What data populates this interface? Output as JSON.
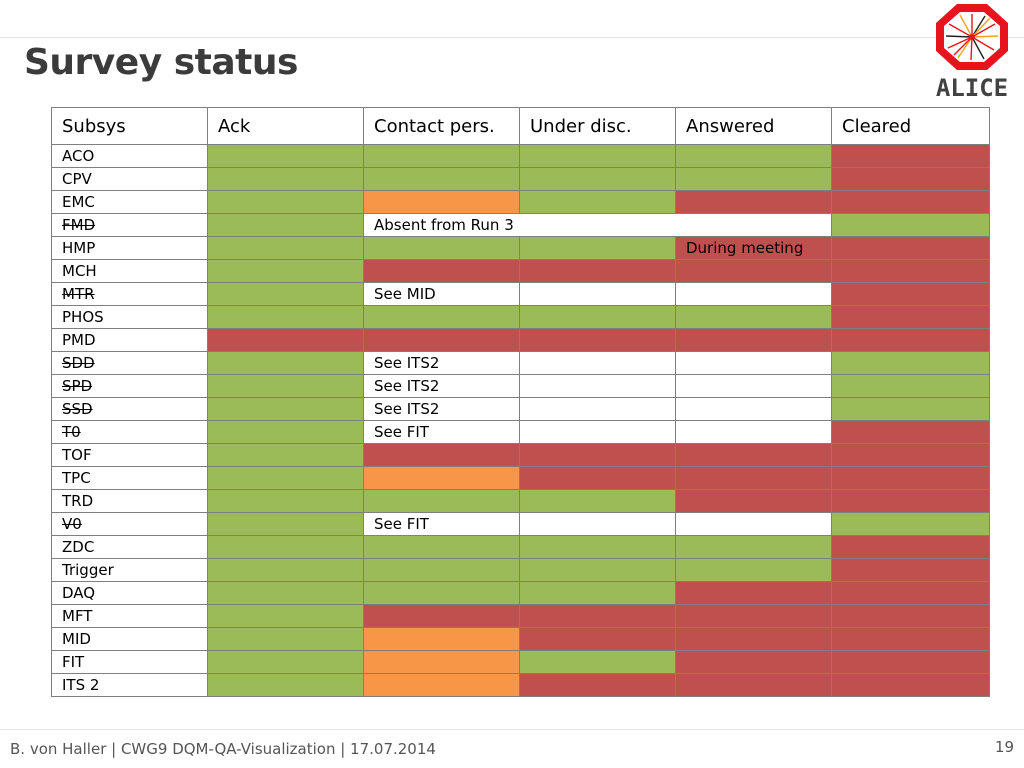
{
  "slide": {
    "title": "Survey status",
    "logo_text": "ALICE",
    "footer": "B. von Haller | CWG9 DQM-QA-Visualization | 17.07.2014",
    "page_number": "19"
  },
  "colors": {
    "green": "#9bbb59",
    "red": "#c0504d",
    "orange": "#f79646",
    "white": "#ffffff"
  },
  "table": {
    "headers": [
      "Subsys",
      "Ack",
      "Contact pers.",
      "Under disc.",
      "Answered",
      "Cleared"
    ],
    "rows": [
      {
        "name": "ACO",
        "struck": false,
        "cells": [
          {
            "c": "green"
          },
          {
            "c": "green"
          },
          {
            "c": "green"
          },
          {
            "c": "green"
          },
          {
            "c": "red"
          }
        ]
      },
      {
        "name": "CPV",
        "struck": false,
        "cells": [
          {
            "c": "green"
          },
          {
            "c": "green"
          },
          {
            "c": "green"
          },
          {
            "c": "green"
          },
          {
            "c": "red"
          }
        ]
      },
      {
        "name": "EMC",
        "struck": false,
        "cells": [
          {
            "c": "green"
          },
          {
            "c": "orange"
          },
          {
            "c": "green"
          },
          {
            "c": "red"
          },
          {
            "c": "red"
          }
        ]
      },
      {
        "name": "FMD",
        "struck": true,
        "cells": [
          {
            "c": "green"
          },
          {
            "c": "white",
            "t": "Absent from Run 3",
            "span": 3
          },
          {
            "c": "green"
          }
        ]
      },
      {
        "name": "HMP",
        "struck": false,
        "cells": [
          {
            "c": "green"
          },
          {
            "c": "green"
          },
          {
            "c": "green"
          },
          {
            "c": "red",
            "t": "During meeting"
          },
          {
            "c": "red"
          }
        ]
      },
      {
        "name": "MCH",
        "struck": false,
        "cells": [
          {
            "c": "green"
          },
          {
            "c": "red"
          },
          {
            "c": "red"
          },
          {
            "c": "red"
          },
          {
            "c": "red"
          }
        ]
      },
      {
        "name": "MTR",
        "struck": true,
        "cells": [
          {
            "c": "green"
          },
          {
            "c": "white",
            "t": "See MID"
          },
          {
            "c": "white"
          },
          {
            "c": "white"
          },
          {
            "c": "red"
          }
        ]
      },
      {
        "name": "PHOS",
        "struck": false,
        "cells": [
          {
            "c": "green"
          },
          {
            "c": "green"
          },
          {
            "c": "green"
          },
          {
            "c": "green"
          },
          {
            "c": "red"
          }
        ]
      },
      {
        "name": "PMD",
        "struck": false,
        "cells": [
          {
            "c": "red"
          },
          {
            "c": "red"
          },
          {
            "c": "red"
          },
          {
            "c": "red"
          },
          {
            "c": "red"
          }
        ]
      },
      {
        "name": "SDD",
        "struck": true,
        "cells": [
          {
            "c": "green"
          },
          {
            "c": "white",
            "t": "See ITS2"
          },
          {
            "c": "white"
          },
          {
            "c": "white"
          },
          {
            "c": "green"
          }
        ]
      },
      {
        "name": "SPD",
        "struck": true,
        "cells": [
          {
            "c": "green"
          },
          {
            "c": "white",
            "t": "See ITS2"
          },
          {
            "c": "white"
          },
          {
            "c": "white"
          },
          {
            "c": "green"
          }
        ]
      },
      {
        "name": "SSD",
        "struck": true,
        "cells": [
          {
            "c": "green"
          },
          {
            "c": "white",
            "t": "See ITS2"
          },
          {
            "c": "white"
          },
          {
            "c": "white"
          },
          {
            "c": "green"
          }
        ]
      },
      {
        "name": "T0",
        "struck": true,
        "cells": [
          {
            "c": "green"
          },
          {
            "c": "white",
            "t": "See FIT"
          },
          {
            "c": "white"
          },
          {
            "c": "white"
          },
          {
            "c": "red"
          }
        ]
      },
      {
        "name": "TOF",
        "struck": false,
        "cells": [
          {
            "c": "green"
          },
          {
            "c": "red"
          },
          {
            "c": "red"
          },
          {
            "c": "red"
          },
          {
            "c": "red"
          }
        ]
      },
      {
        "name": "TPC",
        "struck": false,
        "cells": [
          {
            "c": "green"
          },
          {
            "c": "orange"
          },
          {
            "c": "red"
          },
          {
            "c": "red"
          },
          {
            "c": "red"
          }
        ]
      },
      {
        "name": "TRD",
        "struck": false,
        "cells": [
          {
            "c": "green"
          },
          {
            "c": "green"
          },
          {
            "c": "green"
          },
          {
            "c": "red"
          },
          {
            "c": "red"
          }
        ]
      },
      {
        "name": "V0",
        "struck": true,
        "cells": [
          {
            "c": "green"
          },
          {
            "c": "white",
            "t": "See FIT"
          },
          {
            "c": "white"
          },
          {
            "c": "white"
          },
          {
            "c": "green"
          }
        ]
      },
      {
        "name": "ZDC",
        "struck": false,
        "cells": [
          {
            "c": "green"
          },
          {
            "c": "green"
          },
          {
            "c": "green"
          },
          {
            "c": "green"
          },
          {
            "c": "red"
          }
        ]
      },
      {
        "name": "Trigger",
        "struck": false,
        "cells": [
          {
            "c": "green"
          },
          {
            "c": "green"
          },
          {
            "c": "green"
          },
          {
            "c": "green"
          },
          {
            "c": "red"
          }
        ]
      },
      {
        "name": "DAQ",
        "struck": false,
        "cells": [
          {
            "c": "green"
          },
          {
            "c": "green"
          },
          {
            "c": "green"
          },
          {
            "c": "red"
          },
          {
            "c": "red"
          }
        ]
      },
      {
        "name": "MFT",
        "struck": false,
        "cells": [
          {
            "c": "green"
          },
          {
            "c": "red"
          },
          {
            "c": "red"
          },
          {
            "c": "red"
          },
          {
            "c": "red"
          }
        ]
      },
      {
        "name": "MID",
        "struck": false,
        "cells": [
          {
            "c": "green"
          },
          {
            "c": "orange"
          },
          {
            "c": "red"
          },
          {
            "c": "red"
          },
          {
            "c": "red"
          }
        ]
      },
      {
        "name": "FIT",
        "struck": false,
        "cells": [
          {
            "c": "green"
          },
          {
            "c": "orange"
          },
          {
            "c": "green"
          },
          {
            "c": "red"
          },
          {
            "c": "red"
          }
        ]
      },
      {
        "name": "ITS 2",
        "struck": false,
        "cells": [
          {
            "c": "green"
          },
          {
            "c": "orange"
          },
          {
            "c": "red"
          },
          {
            "c": "red"
          },
          {
            "c": "red"
          }
        ]
      }
    ]
  }
}
